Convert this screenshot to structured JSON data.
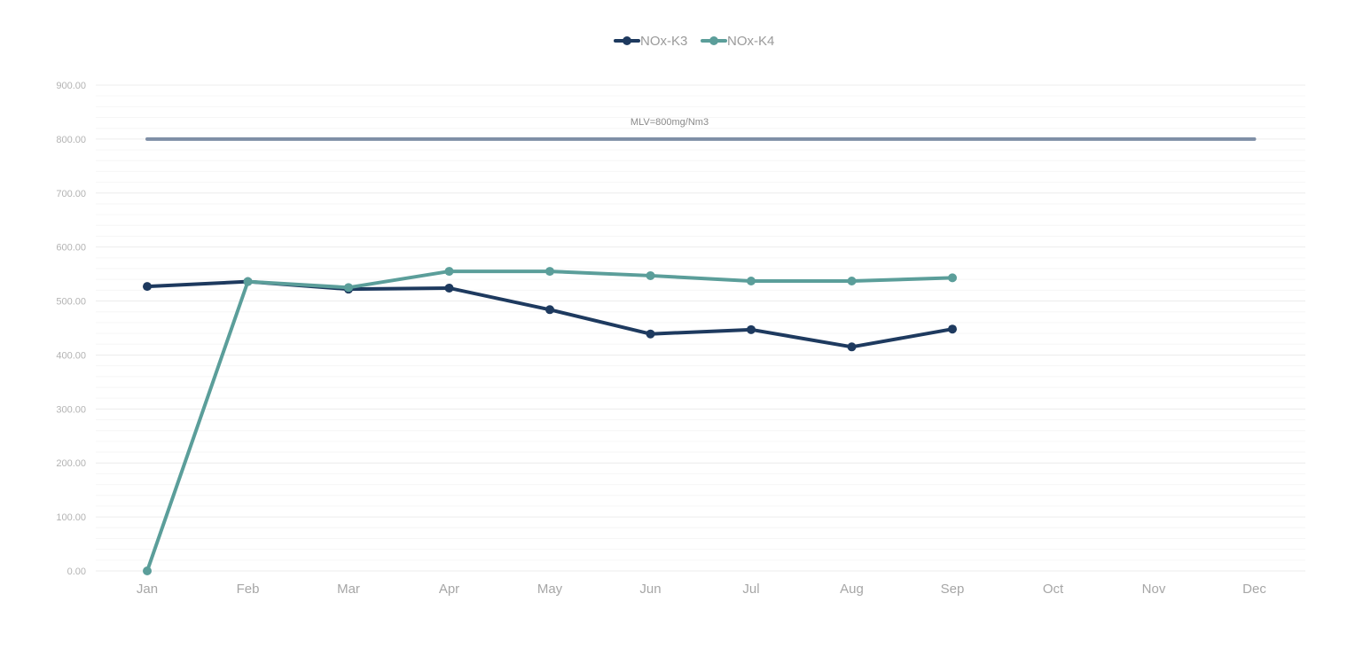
{
  "chart_data": {
    "type": "line",
    "title": "",
    "xlabel": "",
    "ylabel": "",
    "categories": [
      "Jan",
      "Feb",
      "Mar",
      "Apr",
      "May",
      "Jun",
      "Jul",
      "Aug",
      "Sep",
      "Oct",
      "Nov",
      "Dec"
    ],
    "ylim": [
      0,
      900
    ],
    "y_ticks": [
      "0.00",
      "100.00",
      "200.00",
      "300.00",
      "400.00",
      "500.00",
      "600.00",
      "700.00",
      "800.00",
      "900.00"
    ],
    "y_tick_values": [
      0,
      100,
      200,
      300,
      400,
      500,
      600,
      700,
      800,
      900
    ],
    "grid": true,
    "legend_position": "top-center",
    "series": [
      {
        "name": "NOx-K3",
        "color": "#1e3a5f",
        "values": [
          527,
          536,
          522,
          524,
          484,
          439,
          447,
          415,
          448,
          null,
          null,
          null
        ]
      },
      {
        "name": "NOx-K4",
        "color": "#5b9e9a",
        "values": [
          0,
          536,
          525,
          555,
          555,
          547,
          537,
          537,
          543,
          null,
          null,
          null
        ]
      }
    ],
    "reference_line": {
      "label": "MLV=800mg/Nm3",
      "value": 800,
      "color": "#7f8fa6",
      "from_category": "Jan",
      "to_category": "Dec"
    }
  }
}
